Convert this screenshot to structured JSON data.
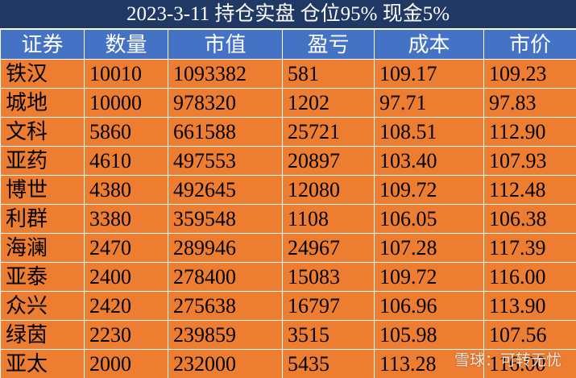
{
  "title": "2023-3-11 持仓实盘 仓位95% 现金5%",
  "table": {
    "header": [
      "证券",
      "数量",
      "市值",
      "盈亏",
      "成本",
      "市价"
    ],
    "rows": [
      [
        "铁汉",
        "10010",
        "1093382",
        "581",
        "109.17",
        "109.23"
      ],
      [
        "城地",
        "10000",
        "978320",
        "1202",
        "97.71",
        "97.83"
      ],
      [
        "文科",
        "5860",
        "661588",
        "25721",
        "108.51",
        "112.90"
      ],
      [
        "亚药",
        "4610",
        "497553",
        "20897",
        "103.40",
        "107.93"
      ],
      [
        "博世",
        "4380",
        "492645",
        "12080",
        "109.72",
        "112.48"
      ],
      [
        "利群",
        "3380",
        "359548",
        "1108",
        "106.05",
        "106.38"
      ],
      [
        "海澜",
        "2470",
        "289946",
        "24967",
        "107.28",
        "117.39"
      ],
      [
        "亚泰",
        "2400",
        "278400",
        "15083",
        "109.72",
        "116.00"
      ],
      [
        "众兴",
        "2420",
        "275638",
        "16797",
        "106.96",
        "113.90"
      ],
      [
        "绿茵",
        "2230",
        "239859",
        "3515",
        "105.98",
        "107.56"
      ],
      [
        "亚太",
        "2000",
        "232000",
        "5435",
        "113.28",
        "116.00"
      ]
    ]
  },
  "watermark": "雪球：可转无忧"
}
